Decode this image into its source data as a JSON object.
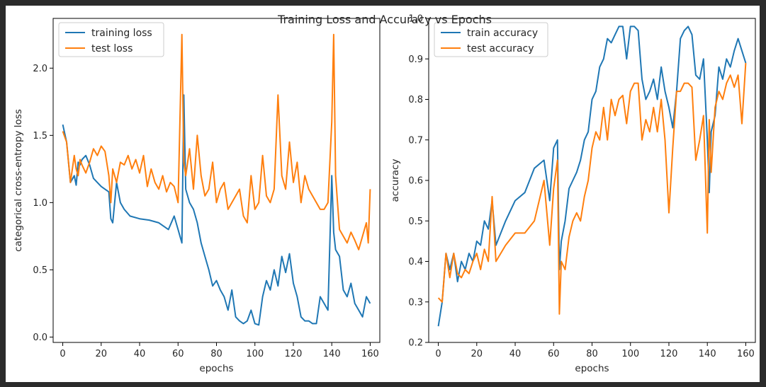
{
  "figure_title": "Training Loss and Accuracy vs Epochs",
  "chart_data": [
    {
      "type": "line",
      "xlabel": "epochs",
      "ylabel": "categorical cross-entropy loss",
      "xlim": [
        -5,
        165
      ],
      "ylim": [
        -0.04,
        2.37
      ],
      "xticks": [
        0,
        20,
        40,
        60,
        80,
        100,
        120,
        140,
        160
      ],
      "yticks": [
        0.0,
        0.5,
        1.0,
        1.5,
        2.0
      ],
      "ytick_labels": [
        "0.0",
        "0.5",
        "1.0",
        "1.5",
        "2.0"
      ],
      "legend_position": "top-left",
      "series": [
        {
          "name": "training loss",
          "color": "#1f77b4",
          "x": [
            0,
            2,
            4,
            6,
            7,
            8,
            9,
            10,
            12,
            14,
            16,
            18,
            20,
            22,
            24,
            25,
            26,
            28,
            30,
            32,
            35,
            40,
            45,
            50,
            55,
            58,
            60,
            62,
            63,
            64,
            66,
            68,
            70,
            72,
            74,
            76,
            78,
            80,
            82,
            84,
            86,
            88,
            90,
            92,
            94,
            96,
            98,
            100,
            102,
            104,
            106,
            108,
            110,
            112,
            114,
            116,
            118,
            120,
            122,
            124,
            126,
            128,
            130,
            132,
            134,
            136,
            138,
            140,
            141,
            142,
            144,
            146,
            148,
            150,
            152,
            154,
            156,
            158,
            160
          ],
          "y": [
            1.58,
            1.45,
            1.15,
            1.2,
            1.13,
            1.3,
            1.28,
            1.32,
            1.35,
            1.28,
            1.18,
            1.15,
            1.12,
            1.1,
            1.08,
            0.88,
            0.85,
            1.15,
            1.0,
            0.95,
            0.9,
            0.88,
            0.87,
            0.85,
            0.8,
            0.9,
            0.8,
            0.7,
            1.8,
            1.1,
            1.0,
            0.95,
            0.85,
            0.7,
            0.6,
            0.5,
            0.38,
            0.42,
            0.35,
            0.3,
            0.2,
            0.35,
            0.15,
            0.12,
            0.1,
            0.12,
            0.2,
            0.1,
            0.09,
            0.3,
            0.42,
            0.35,
            0.5,
            0.38,
            0.6,
            0.48,
            0.62,
            0.4,
            0.3,
            0.15,
            0.12,
            0.12,
            0.1,
            0.1,
            0.3,
            0.25,
            0.2,
            1.2,
            0.78,
            0.65,
            0.6,
            0.35,
            0.3,
            0.4,
            0.25,
            0.2,
            0.15,
            0.3,
            0.25
          ]
        },
        {
          "name": "test loss",
          "color": "#ff7f0e",
          "x": [
            0,
            2,
            4,
            6,
            7,
            8,
            9,
            10,
            12,
            14,
            16,
            18,
            20,
            22,
            24,
            25,
            26,
            28,
            30,
            32,
            34,
            36,
            38,
            40,
            42,
            44,
            46,
            48,
            50,
            52,
            54,
            56,
            58,
            60,
            62,
            63,
            64,
            66,
            68,
            70,
            72,
            74,
            76,
            78,
            80,
            82,
            84,
            86,
            88,
            90,
            92,
            94,
            96,
            98,
            100,
            102,
            104,
            106,
            108,
            110,
            112,
            114,
            116,
            118,
            120,
            122,
            124,
            126,
            128,
            130,
            132,
            134,
            136,
            138,
            140,
            141,
            142,
            143,
            144,
            146,
            148,
            150,
            152,
            154,
            156,
            158,
            159,
            160
          ],
          "y": [
            1.53,
            1.45,
            1.15,
            1.35,
            1.25,
            1.2,
            1.32,
            1.28,
            1.22,
            1.3,
            1.4,
            1.35,
            1.42,
            1.38,
            1.2,
            1.0,
            1.25,
            1.15,
            1.3,
            1.28,
            1.35,
            1.25,
            1.32,
            1.22,
            1.35,
            1.12,
            1.25,
            1.15,
            1.1,
            1.2,
            1.08,
            1.15,
            1.12,
            1.0,
            2.25,
            1.3,
            1.2,
            1.4,
            1.1,
            1.5,
            1.2,
            1.05,
            1.1,
            1.3,
            1.0,
            1.1,
            1.15,
            0.95,
            1.0,
            1.05,
            1.1,
            0.9,
            0.85,
            1.2,
            0.95,
            1.0,
            1.35,
            1.05,
            1.0,
            1.1,
            1.8,
            1.2,
            1.1,
            1.45,
            1.15,
            1.3,
            1.0,
            1.2,
            1.1,
            1.05,
            1.0,
            0.95,
            0.95,
            1.0,
            1.6,
            2.25,
            1.2,
            1.0,
            0.8,
            0.75,
            0.7,
            0.78,
            0.72,
            0.65,
            0.75,
            0.85,
            0.7,
            1.1
          ]
        }
      ]
    },
    {
      "type": "line",
      "xlabel": "epochs",
      "ylabel": "accuracy",
      "xlim": [
        -5,
        165
      ],
      "ylim": [
        0.2,
        1.0
      ],
      "xticks": [
        0,
        20,
        40,
        60,
        80,
        100,
        120,
        140,
        160
      ],
      "yticks": [
        0.2,
        0.3,
        0.4,
        0.5,
        0.6,
        0.7,
        0.8,
        0.9,
        1.0
      ],
      "ytick_labels": [
        "0.2",
        "0.3",
        "0.4",
        "0.5",
        "0.6",
        "0.7",
        "0.8",
        "0.9",
        "1.0"
      ],
      "legend_position": "top-left",
      "series": [
        {
          "name": "train accuracy",
          "color": "#1f77b4",
          "x": [
            0,
            2,
            4,
            6,
            8,
            10,
            12,
            14,
            16,
            18,
            20,
            22,
            24,
            26,
            28,
            30,
            35,
            40,
            45,
            50,
            55,
            58,
            60,
            62,
            63,
            64,
            66,
            68,
            70,
            72,
            74,
            76,
            78,
            80,
            82,
            84,
            86,
            88,
            90,
            92,
            94,
            96,
            98,
            100,
            102,
            104,
            106,
            108,
            110,
            112,
            114,
            116,
            118,
            120,
            122,
            124,
            126,
            128,
            130,
            132,
            134,
            136,
            138,
            140,
            141,
            142,
            144,
            146,
            148,
            150,
            152,
            154,
            156,
            158,
            160
          ],
          "y": [
            0.24,
            0.3,
            0.42,
            0.38,
            0.42,
            0.35,
            0.4,
            0.38,
            0.42,
            0.4,
            0.45,
            0.44,
            0.5,
            0.48,
            0.55,
            0.44,
            0.5,
            0.55,
            0.57,
            0.63,
            0.65,
            0.55,
            0.68,
            0.7,
            0.38,
            0.45,
            0.5,
            0.58,
            0.6,
            0.62,
            0.65,
            0.7,
            0.72,
            0.8,
            0.82,
            0.88,
            0.9,
            0.95,
            0.94,
            0.96,
            0.98,
            0.98,
            0.9,
            0.98,
            0.98,
            0.97,
            0.85,
            0.8,
            0.82,
            0.85,
            0.8,
            0.88,
            0.82,
            0.78,
            0.73,
            0.82,
            0.95,
            0.97,
            0.98,
            0.96,
            0.86,
            0.85,
            0.9,
            0.7,
            0.57,
            0.72,
            0.76,
            0.88,
            0.85,
            0.9,
            0.88,
            0.92,
            0.95,
            0.92,
            0.89
          ]
        },
        {
          "name": "test accuracy",
          "color": "#ff7f0e",
          "x": [
            0,
            2,
            4,
            6,
            8,
            10,
            12,
            14,
            16,
            18,
            20,
            22,
            24,
            26,
            28,
            30,
            35,
            40,
            45,
            50,
            55,
            58,
            60,
            62,
            63,
            64,
            66,
            68,
            70,
            72,
            74,
            76,
            78,
            80,
            82,
            84,
            86,
            88,
            90,
            92,
            94,
            96,
            98,
            100,
            102,
            104,
            106,
            108,
            110,
            112,
            114,
            116,
            118,
            120,
            122,
            124,
            126,
            128,
            130,
            132,
            134,
            136,
            138,
            140,
            141,
            142,
            144,
            146,
            148,
            150,
            152,
            154,
            156,
            158,
            160
          ],
          "y": [
            0.31,
            0.3,
            0.42,
            0.36,
            0.42,
            0.37,
            0.36,
            0.38,
            0.37,
            0.4,
            0.42,
            0.38,
            0.43,
            0.4,
            0.56,
            0.4,
            0.44,
            0.47,
            0.47,
            0.5,
            0.6,
            0.44,
            0.58,
            0.65,
            0.27,
            0.4,
            0.38,
            0.46,
            0.5,
            0.52,
            0.5,
            0.56,
            0.6,
            0.68,
            0.72,
            0.7,
            0.78,
            0.7,
            0.8,
            0.76,
            0.8,
            0.81,
            0.74,
            0.82,
            0.84,
            0.84,
            0.7,
            0.75,
            0.72,
            0.78,
            0.72,
            0.8,
            0.7,
            0.52,
            0.68,
            0.82,
            0.82,
            0.84,
            0.84,
            0.83,
            0.65,
            0.7,
            0.76,
            0.47,
            0.75,
            0.62,
            0.78,
            0.82,
            0.8,
            0.84,
            0.86,
            0.83,
            0.86,
            0.74,
            0.89
          ]
        }
      ]
    }
  ]
}
